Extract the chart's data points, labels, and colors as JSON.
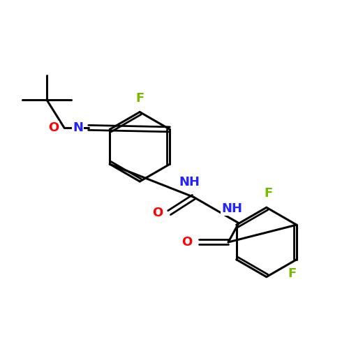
{
  "background_color": "#ffffff",
  "figsize": [
    5.0,
    5.0
  ],
  "dpi": 100,
  "atom_colors": {
    "C": "#000000",
    "N": "#2222ff",
    "O": "#ff0000",
    "F": "#77bb00",
    "H": "#000000"
  },
  "bond_color": "#000000",
  "bond_width": 2.2,
  "font_size": 13
}
